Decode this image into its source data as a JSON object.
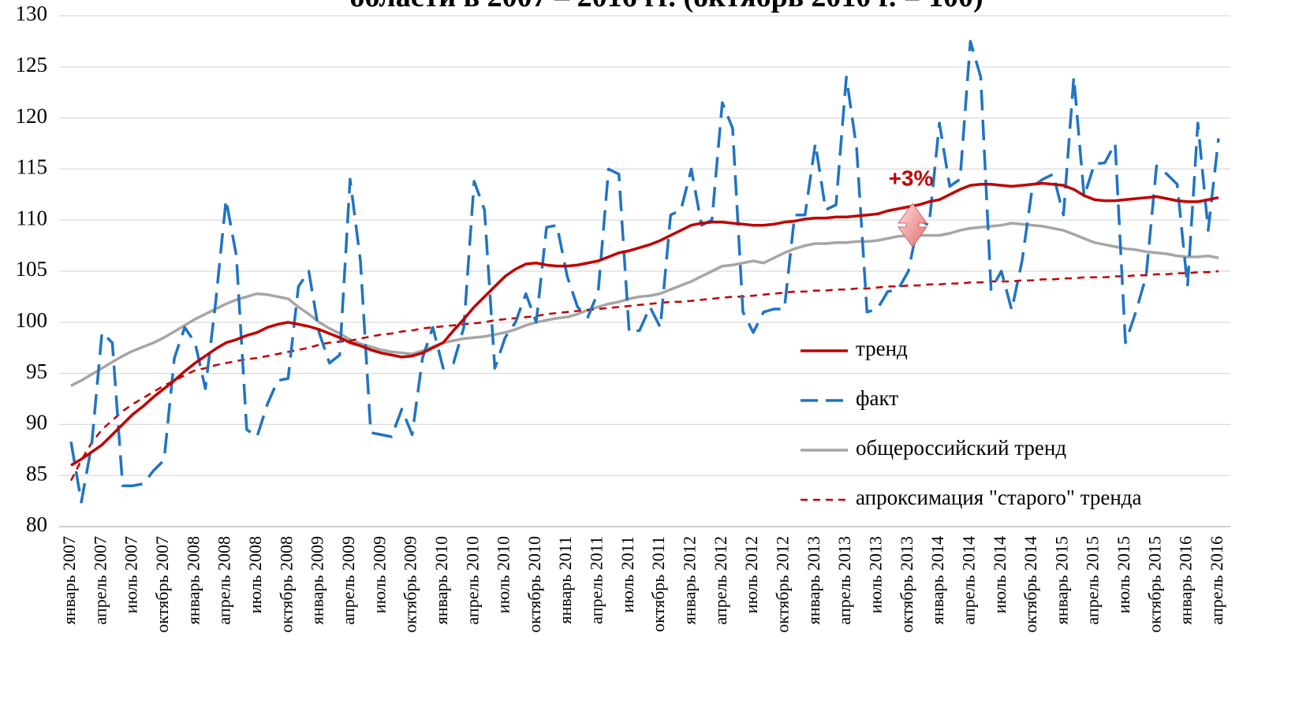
{
  "chart_data": {
    "type": "line",
    "title": "области в 2007 – 2016 гг. (октябрь 2010 г. = 100)",
    "annotation": "+3%",
    "legend": "right",
    "grid": true,
    "ylim": [
      80,
      130
    ],
    "yticks": [
      80,
      85,
      90,
      95,
      100,
      105,
      110,
      115,
      120,
      125,
      130
    ],
    "categories": [
      "январь 2007",
      null,
      null,
      "апрель 2007",
      null,
      null,
      "июль 2007",
      null,
      null,
      "октябрь 2007",
      null,
      null,
      "январь 2008",
      null,
      null,
      "апрель 2008",
      null,
      null,
      "июль 2008",
      null,
      null,
      "октябрь 2008",
      null,
      null,
      "январь 2009",
      null,
      null,
      "апрель 2009",
      null,
      null,
      "июль 2009",
      null,
      null,
      "октябрь 2009",
      null,
      null,
      "январь 2010",
      null,
      null,
      "апрель 2010",
      null,
      null,
      "июль 2010",
      null,
      null,
      "октябрь 2010",
      null,
      null,
      "январь 2011",
      null,
      null,
      "апрель 2011",
      null,
      null,
      "июль 2011",
      null,
      null,
      "октябрь 2011",
      null,
      null,
      "январь 2012",
      null,
      null,
      "апрель 2012",
      null,
      null,
      "июль 2012",
      null,
      null,
      "октябрь 2012",
      null,
      null,
      "январь 2013",
      null,
      null,
      "апрель 2013",
      null,
      null,
      "июль 2013",
      null,
      null,
      "октябрь 2013",
      null,
      null,
      "январь 2014",
      null,
      null,
      "апрель 2014",
      null,
      null,
      "июль 2014",
      null,
      null,
      "октябрь 2014",
      null,
      null,
      "январь 2015",
      null,
      null,
      "апрель 2015",
      null,
      null,
      "июль 2015",
      null,
      null,
      "октябрь 2015",
      null,
      null,
      "январь 2016",
      null,
      null,
      "апрель 2016"
    ],
    "series": [
      {
        "name": "тренд",
        "color": "#c00000",
        "style": "solid",
        "values": [
          86,
          86.6,
          87.3,
          88,
          89,
          90,
          91,
          91.8,
          92.7,
          93.5,
          94.3,
          95.2,
          96,
          96.7,
          97.4,
          98,
          98.3,
          98.7,
          99,
          99.5,
          99.8,
          100,
          99.8,
          99.6,
          99.3,
          98.9,
          98.5,
          98,
          97.7,
          97.3,
          97,
          96.8,
          96.6,
          96.7,
          97,
          97.5,
          98,
          99.2,
          100.3,
          101.5,
          102.5,
          103.5,
          104.5,
          105.2,
          105.7,
          105.8,
          105.6,
          105.5,
          105.5,
          105.6,
          105.8,
          106,
          106.4,
          106.8,
          107,
          107.3,
          107.6,
          108,
          108.5,
          109,
          109.5,
          109.7,
          109.8,
          109.8,
          109.7,
          109.6,
          109.5,
          109.5,
          109.6,
          109.8,
          109.9,
          110.1,
          110.2,
          110.2,
          110.3,
          110.3,
          110.4,
          110.5,
          110.6,
          110.9,
          111.1,
          111.3,
          111.5,
          111.8,
          112,
          112.5,
          113,
          113.4,
          113.5,
          113.5,
          113.4,
          113.3,
          113.4,
          113.5,
          113.6,
          113.5,
          113.4,
          113,
          112.4,
          112,
          111.9,
          111.9,
          112,
          112.1,
          112.2,
          112.3,
          112.1,
          111.9,
          111.8,
          111.8,
          112,
          112.2
        ]
      },
      {
        "name": "факт",
        "color": "#1f74c4",
        "style": "dashed",
        "values": [
          88.3,
          82.4,
          88,
          99,
          98,
          84,
          84,
          84.2,
          85.5,
          86.5,
          96.5,
          99.5,
          98,
          93.5,
          102,
          112,
          106.5,
          89.5,
          88.8,
          92,
          94.3,
          94.5,
          103.5,
          105,
          99,
          96,
          96.8,
          114,
          106,
          89.2,
          89,
          88.8,
          91.5,
          89,
          96.5,
          99.5,
          95.5,
          96,
          99.5,
          113.8,
          111,
          95.5,
          98.5,
          100,
          102.8,
          100,
          109.3,
          109.5,
          104.5,
          101.5,
          100.5,
          103,
          115,
          114.5,
          99,
          99.2,
          101.5,
          99.5,
          110.5,
          111,
          115,
          109.5,
          110,
          121.5,
          119,
          101,
          99,
          101,
          101.3,
          101.3,
          110.5,
          110.5,
          117.5,
          111,
          111.5,
          124,
          117,
          101,
          101.3,
          103,
          103.2,
          105,
          110,
          109.5,
          119.5,
          113.3,
          114,
          127.5,
          124,
          103.2,
          105,
          101.2,
          106,
          113.3,
          114,
          114.5,
          110.5,
          124,
          112.3,
          115.5,
          115.6,
          117.5,
          98,
          101,
          104.5,
          115.3,
          114.5,
          113.5,
          103.5,
          119.5,
          109,
          118
        ]
      },
      {
        "name": "общероссийский тренд",
        "color": "#a6a6a6",
        "style": "solid",
        "values": [
          93.8,
          94.3,
          94.9,
          95.5,
          96.1,
          96.7,
          97.2,
          97.6,
          98,
          98.5,
          99.1,
          99.7,
          100.3,
          100.8,
          101.3,
          101.8,
          102.2,
          102.5,
          102.8,
          102.7,
          102.5,
          102.3,
          101.5,
          100.8,
          100,
          99.4,
          98.9,
          98.3,
          97.9,
          97.6,
          97.3,
          97.1,
          97,
          96.9,
          97.2,
          97.6,
          98,
          98.2,
          98.4,
          98.5,
          98.6,
          98.8,
          99,
          99.3,
          99.7,
          100,
          100.2,
          100.4,
          100.5,
          100.8,
          101.2,
          101.5,
          101.8,
          102,
          102.3,
          102.5,
          102.6,
          102.8,
          103.2,
          103.6,
          104,
          104.5,
          105,
          105.5,
          105.6,
          105.8,
          106,
          105.8,
          106.3,
          106.8,
          107.2,
          107.5,
          107.7,
          107.7,
          107.8,
          107.8,
          107.9,
          107.9,
          108,
          108.2,
          108.4,
          108.5,
          108.5,
          108.5,
          108.5,
          108.7,
          109,
          109.2,
          109.3,
          109.4,
          109.5,
          109.7,
          109.6,
          109.5,
          109.4,
          109.2,
          109,
          108.6,
          108.2,
          107.8,
          107.6,
          107.4,
          107.2,
          107.1,
          106.9,
          106.8,
          106.7,
          106.5,
          106.4,
          106.4,
          106.5,
          106.3
        ]
      },
      {
        "name": "апроксимация \"старого\" тренда",
        "color": "#c00000",
        "style": "dotted",
        "values": [
          84.5,
          86.5,
          88.2,
          89.5,
          90.4,
          91.3,
          92,
          92.6,
          93.2,
          93.8,
          94.3,
          94.8,
          95.3,
          95.5,
          95.8,
          96,
          96.2,
          96.4,
          96.5,
          96.7,
          96.9,
          97.1,
          97.3,
          97.5,
          97.8,
          98,
          98.1,
          98.2,
          98.4,
          98.6,
          98.8,
          98.9,
          99.1,
          99.2,
          99.4,
          99.5,
          99.6,
          99.7,
          99.8,
          99.9,
          100,
          100.2,
          100.3,
          100.4,
          100.5,
          100.6,
          100.8,
          100.9,
          101,
          101.1,
          101.2,
          101.3,
          101.4,
          101.5,
          101.6,
          101.7,
          101.8,
          101.9,
          102,
          102,
          102.1,
          102.2,
          102.3,
          102.4,
          102.5,
          102.5,
          102.6,
          102.7,
          102.8,
          102.9,
          103,
          103,
          103.1,
          103.1,
          103.2,
          103.2,
          103.3,
          103.3,
          103.4,
          103.5,
          103.5,
          103.6,
          103.6,
          103.7,
          103.7,
          103.8,
          103.8,
          103.9,
          103.9,
          104,
          104,
          104,
          104.1,
          104.1,
          104.2,
          104.2,
          104.3,
          104.3,
          104.4,
          104.4,
          104.4,
          104.5,
          104.5,
          104.6,
          104.6,
          104.7,
          104.7,
          104.8,
          104.8,
          104.9,
          104.9,
          105
        ]
      }
    ]
  }
}
